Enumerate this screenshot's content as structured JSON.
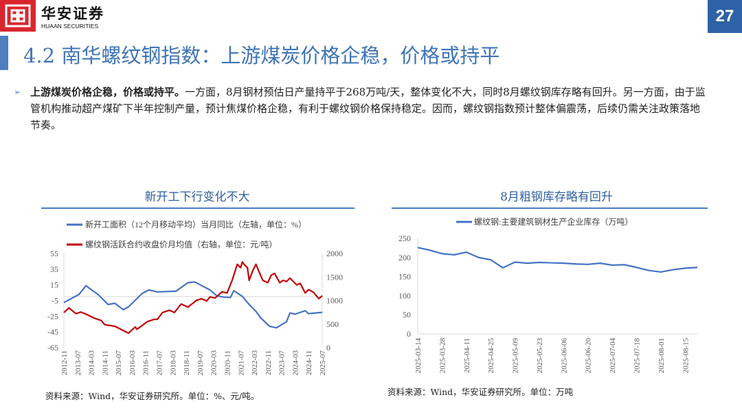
{
  "header": {
    "brand_cn": "华安证券",
    "brand_en": "HUAAN SECURITIES",
    "page_number": "27",
    "title": "4.2 南华螺纹钢指数：上游煤炭价格企稳，价格或持平",
    "accent": "#4f7fbf",
    "logo_color": "#d9262e"
  },
  "body": {
    "bold": "上游煤炭价格企稳，价格或持平。",
    "text": "一方面，8月钢材预估日产量持平于268万吨/天，整体变化不大，同时8月螺纹钢库存略有回升。另一方面，由于监管机构推动超产煤矿下半年控制产量，预计焦煤价格企稳，有利于螺纹钢价格保持稳定。因而，螺纹钢指数预计整体偏震荡，后续仍需关注政策落地节奏。"
  },
  "chart_data": [
    {
      "type": "line",
      "title": "新开工下行变化不大",
      "source": "资料来源：Wind，华安证券研究所。单位：%、元/吨。",
      "x_ticks": [
        "2012-11",
        "2013-07",
        "2014-03",
        "2014-11",
        "2015-07",
        "2016-03",
        "2016-11",
        "2017-07",
        "2018-03",
        "2018-11",
        "2019-07",
        "2020-03",
        "2020-11",
        "2021-07",
        "2022-03",
        "2022-11",
        "2023-07",
        "2024-03",
        "2024-11",
        "2025-07"
      ],
      "y_left": {
        "ticks": [
          55,
          35,
          15,
          -5,
          -25,
          -45,
          -65
        ],
        "range": [
          -65,
          55
        ]
      },
      "y_right": {
        "ticks": [
          2000,
          1500,
          1000,
          500,
          0
        ],
        "range": [
          0,
          2000
        ]
      },
      "legend_position": "top",
      "series": [
        {
          "name": "新开工面积（12个月移动平均）当月同比（左轴，单位：%）",
          "axis": "left",
          "color": "#4472c4",
          "points": [
            [
              "2012-11",
              -7.6
            ],
            [
              "2013-08",
              3
            ],
            [
              "2013-12",
              14
            ],
            [
              "2014-03",
              9
            ],
            [
              "2014-07",
              3
            ],
            [
              "2015-01",
              -10
            ],
            [
              "2015-05",
              -8.5
            ],
            [
              "2015-10",
              -16.7
            ],
            [
              "2016-01",
              -13
            ],
            [
              "2016-09",
              4
            ],
            [
              "2017-01",
              8.5
            ],
            [
              "2017-06",
              6
            ],
            [
              "2018-05",
              7
            ],
            [
              "2018-12",
              17.8
            ],
            [
              "2019-04",
              18.7
            ],
            [
              "2019-09",
              13
            ],
            [
              "2020-01",
              8.5
            ],
            [
              "2020-05",
              1
            ],
            [
              "2020-09",
              -0.6
            ],
            [
              "2021-01",
              -1
            ],
            [
              "2021-03",
              7.6
            ],
            [
              "2021-08",
              0.3
            ],
            [
              "2021-12",
              -10
            ],
            [
              "2022-04",
              -18.8
            ],
            [
              "2022-07",
              -27.5
            ],
            [
              "2022-12",
              -37.8
            ],
            [
              "2023-04",
              -39.8
            ],
            [
              "2023-10",
              -32
            ],
            [
              "2023-12",
              -20.8
            ],
            [
              "2024-03",
              -22.3
            ],
            [
              "2024-09",
              -18
            ],
            [
              "2024-11",
              -21.7
            ],
            [
              "2025-07",
              -20
            ]
          ]
        },
        {
          "name": "螺纹钢活跃合约收盘价月均值（右轴，单位：元/吨）",
          "axis": "right",
          "color": "#c00000",
          "points": [
            [
              "2012-11",
              746
            ],
            [
              "2013-02",
              844
            ],
            [
              "2013-06",
              722
            ],
            [
              "2013-09",
              756
            ],
            [
              "2013-12",
              712
            ],
            [
              "2014-05",
              624
            ],
            [
              "2014-09",
              576
            ],
            [
              "2014-11",
              488
            ],
            [
              "2015-05",
              454
            ],
            [
              "2015-09",
              380
            ],
            [
              "2016-01",
              307
            ],
            [
              "2016-05",
              439
            ],
            [
              "2016-06",
              390
            ],
            [
              "2016-09",
              468
            ],
            [
              "2016-12",
              551
            ],
            [
              "2017-04",
              600
            ],
            [
              "2017-06",
              600
            ],
            [
              "2017-09",
              746
            ],
            [
              "2018-01",
              795
            ],
            [
              "2018-04",
              746
            ],
            [
              "2018-08",
              927
            ],
            [
              "2018-12",
              859
            ],
            [
              "2019-05",
              1005
            ],
            [
              "2019-08",
              1039
            ],
            [
              "2019-11",
              990
            ],
            [
              "2020-01",
              1078
            ],
            [
              "2020-04",
              1054
            ],
            [
              "2020-08",
              1185
            ],
            [
              "2020-11",
              1161
            ],
            [
              "2021-02",
              1429
            ],
            [
              "2021-05",
              1771
            ],
            [
              "2021-07",
              1698
            ],
            [
              "2021-08",
              1820
            ],
            [
              "2021-09",
              1771
            ],
            [
              "2021-11",
              1698
            ],
            [
              "2021-12",
              1429
            ],
            [
              "2022-02",
              1624
            ],
            [
              "2022-04",
              1771
            ],
            [
              "2022-06",
              1600
            ],
            [
              "2022-08",
              1429
            ],
            [
              "2022-11",
              1380
            ],
            [
              "2023-01",
              1541
            ],
            [
              "2023-03",
              1576
            ],
            [
              "2023-06",
              1380
            ],
            [
              "2023-08",
              1429
            ],
            [
              "2023-10",
              1405
            ],
            [
              "2023-12",
              1478
            ],
            [
              "2024-04",
              1332
            ],
            [
              "2024-06",
              1366
            ],
            [
              "2024-09",
              1161
            ],
            [
              "2024-11",
              1234
            ],
            [
              "2025-02",
              1171
            ],
            [
              "2025-05",
              1039
            ],
            [
              "2025-07",
              1102
            ]
          ]
        }
      ]
    },
    {
      "type": "line",
      "title": "8月粗钢库存略有回升",
      "source": "资料来源：Wind，华安证券研究所。单位：万吨",
      "x_ticks": [
        "2025-03-14",
        "2025-03-28",
        "2025-04-11",
        "2025-04-25",
        "2025-05-09",
        "2025-05-23",
        "2025-06-06",
        "2025-06-20",
        "2025-07-04",
        "2025-07-18",
        "2025-08-01",
        "2025-08-15"
      ],
      "y": {
        "ticks": [
          250,
          200,
          150,
          100,
          50,
          0
        ],
        "range": [
          0,
          250
        ]
      },
      "legend_position": "top",
      "series": [
        {
          "name": "螺纹钢:主要建筑钢材生产企业库存（万吨）",
          "color": "#4472c4",
          "x": [
            "2025-03-14",
            "2025-03-21",
            "2025-03-28",
            "2025-04-04",
            "2025-04-11",
            "2025-04-18",
            "2025-04-25",
            "2025-05-02",
            "2025-05-09",
            "2025-05-16",
            "2025-05-23",
            "2025-05-30",
            "2025-06-06",
            "2025-06-13",
            "2025-06-20",
            "2025-06-27",
            "2025-07-04",
            "2025-07-11",
            "2025-07-18",
            "2025-07-25",
            "2025-08-01",
            "2025-08-08",
            "2025-08-15",
            "2025-08-22"
          ],
          "values": [
            226,
            219,
            210,
            207,
            214,
            200,
            194,
            173,
            188,
            185,
            187,
            186,
            185,
            183,
            182,
            185,
            180,
            181,
            174,
            166,
            162,
            168,
            172,
            174
          ]
        }
      ]
    }
  ]
}
